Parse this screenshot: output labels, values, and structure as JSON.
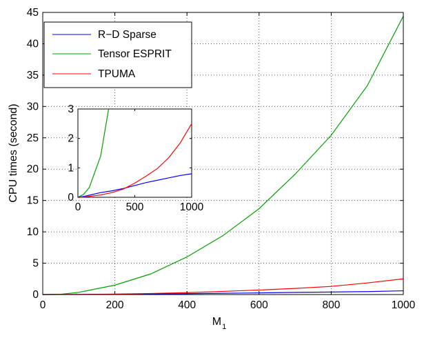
{
  "chart_data": [
    {
      "type": "line",
      "title": "",
      "xlabel": "M",
      "xlabel_sub": "1",
      "ylabel": "CPU times (second)",
      "xlim": [
        0,
        1000
      ],
      "ylim": [
        0,
        45
      ],
      "xticks": [
        0,
        200,
        400,
        600,
        800,
        1000
      ],
      "yticks": [
        0,
        5,
        10,
        15,
        20,
        25,
        30,
        35,
        40,
        45
      ],
      "grid": true,
      "legend_location": "top-left",
      "x": [
        0,
        50,
        100,
        200,
        300,
        400,
        500,
        600,
        700,
        800,
        900,
        1000
      ],
      "series": [
        {
          "name": "R−D Sparse",
          "color": "#0000ff",
          "values": [
            0,
            0.01,
            0.02,
            0.05,
            0.09,
            0.14,
            0.2,
            0.27,
            0.34,
            0.4,
            0.47,
            0.6
          ]
        },
        {
          "name": "Tensor ESPRIT",
          "color": "#00a000",
          "values": [
            0,
            0.05,
            0.35,
            1.5,
            3.3,
            6.0,
            9.4,
            13.7,
            19.2,
            25.4,
            33.3,
            44.4
          ]
        },
        {
          "name": "TPUMA",
          "color": "#ff0000",
          "values": [
            0,
            0.01,
            0.02,
            0.07,
            0.17,
            0.3,
            0.5,
            0.72,
            0.98,
            1.3,
            1.85,
            2.5
          ]
        }
      ]
    },
    {
      "type": "line",
      "title": "",
      "xlim": [
        0,
        1000
      ],
      "ylim": [
        0,
        3
      ],
      "xticks": [
        0,
        500,
        1000
      ],
      "yticks": [
        0,
        1,
        2,
        3
      ],
      "grid": false,
      "series": [
        {
          "name": "R−D Sparse",
          "color": "#0000ff",
          "x": [
            0,
            50,
            100,
            200,
            300,
            400,
            500,
            600,
            700,
            800,
            900,
            1000
          ],
          "values": [
            0,
            0.03,
            0.07,
            0.16,
            0.22,
            0.3,
            0.4,
            0.5,
            0.58,
            0.66,
            0.74,
            0.8
          ]
        },
        {
          "name": "Tensor ESPRIT",
          "color": "#00a000",
          "x": [
            0,
            50,
            100,
            200,
            270
          ],
          "values": [
            0,
            0.1,
            0.33,
            1.4,
            3.0
          ]
        },
        {
          "name": "TPUMA",
          "color": "#ff0000",
          "x": [
            0,
            50,
            100,
            200,
            300,
            400,
            500,
            600,
            700,
            800,
            900,
            1000
          ],
          "values": [
            0,
            0.01,
            0.03,
            0.08,
            0.16,
            0.28,
            0.48,
            0.72,
            0.98,
            1.35,
            1.85,
            2.5
          ]
        }
      ]
    }
  ]
}
